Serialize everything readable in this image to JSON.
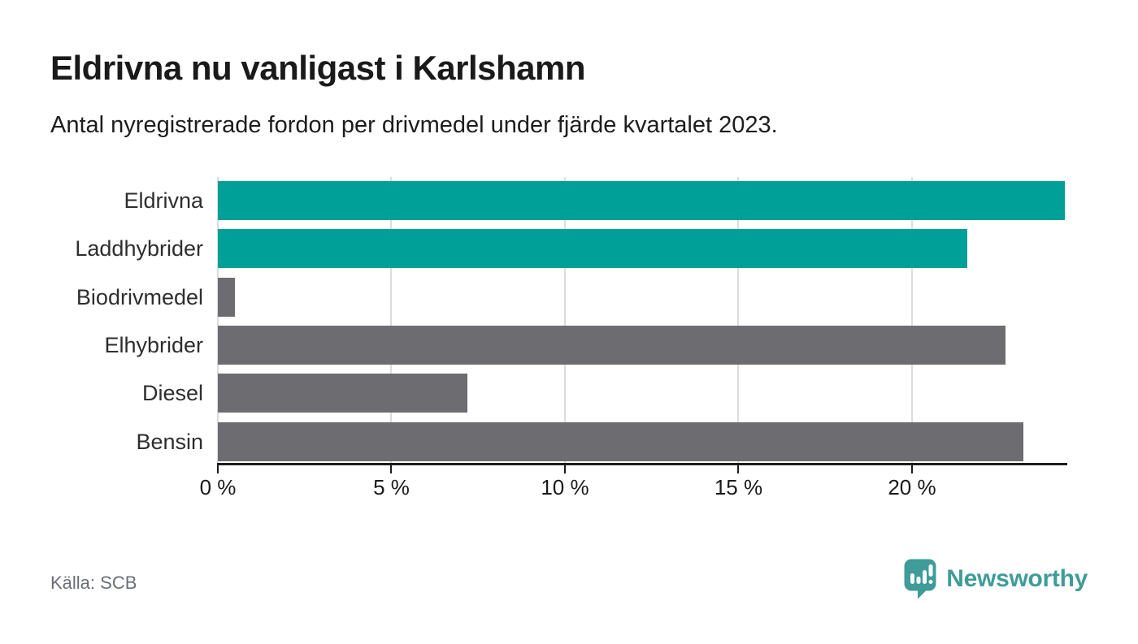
{
  "page": {
    "title": "Eldrivna nu vanligast i Karlshamn",
    "subtitle": "Antal nyregistrerade fordon per drivmedel under fjärde kvartalet 2023.",
    "source": "Källa: SCB",
    "brand": "Newsworthy"
  },
  "colors": {
    "highlight_teal": "#00a099",
    "neutral_gray": "#6c6c71",
    "brand_teal": "#3f9c98",
    "gridline": "#dcdcdc",
    "axis": "#1c1c1c",
    "title_text": "#1a1a1a",
    "muted_text": "#6b6e78"
  },
  "chart_data": {
    "type": "bar",
    "orientation": "horizontal",
    "title": "Eldrivna nu vanligast i Karlshamn",
    "subtitle": "Antal nyregistrerade fordon per drivmedel under fjärde kvartalet 2023.",
    "categories": [
      "Eldrivna",
      "Laddhybrider",
      "Biodrivmedel",
      "Elhybrider",
      "Diesel",
      "Bensin"
    ],
    "values": [
      24.4,
      21.6,
      0.5,
      22.7,
      7.2,
      23.2
    ],
    "unit": "%",
    "bar_colors": [
      "#00a099",
      "#00a099",
      "#6c6c71",
      "#6c6c71",
      "#6c6c71",
      "#6c6c71"
    ],
    "xlim": [
      0,
      24.45
    ],
    "x_ticks": [
      0,
      5,
      10,
      15,
      20
    ],
    "x_tick_labels": [
      "0 %",
      "5 %",
      "10 %",
      "15 %",
      "20 %"
    ],
    "grid": "vertical",
    "legend": "none",
    "source": "Källa: SCB"
  }
}
